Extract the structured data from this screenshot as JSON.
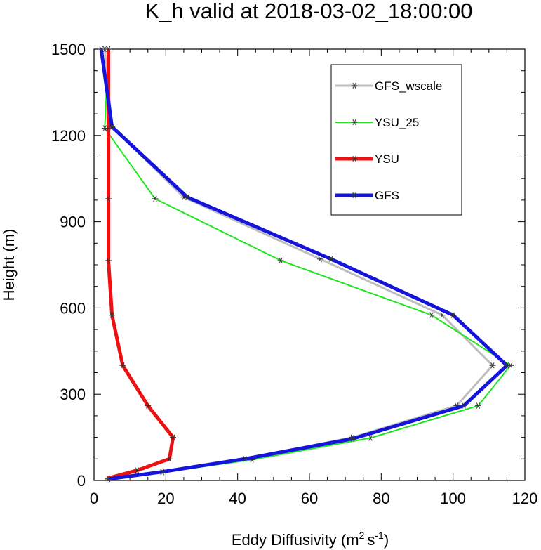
{
  "chart_data": {
    "type": "line",
    "title": "K_h valid at 2018-03-02_18:00:00",
    "xlabel": "Eddy Diffusivity",
    "xlabel_unit": {
      "base_m": "m",
      "exp_m": "2",
      "base_s": "s",
      "exp_s": "-1"
    },
    "ylabel": "Height (m)",
    "xlim": [
      0,
      120
    ],
    "ylim": [
      0,
      1500
    ],
    "xticks": [
      0,
      20,
      40,
      60,
      80,
      100,
      120
    ],
    "yticks": [
      0,
      300,
      600,
      900,
      1200,
      1500
    ],
    "grid": false,
    "legend_position": "top-right",
    "series": [
      {
        "name": "GFS_wscale",
        "color": "#bdbdbd",
        "width": 3,
        "marker": "asterisk",
        "x": [
          4,
          19,
          42,
          72,
          101,
          111,
          97,
          63,
          25,
          5,
          3
        ],
        "y": [
          5,
          30,
          75,
          150,
          260,
          400,
          575,
          770,
          985,
          1230,
          1500
        ]
      },
      {
        "name": "YSU_25",
        "color": "#1ee61e",
        "width": 2,
        "marker": "asterisk",
        "x": [
          4,
          19,
          44,
          77,
          107,
          116,
          94,
          52,
          17,
          3,
          4
        ],
        "y": [
          5,
          28,
          72,
          148,
          260,
          400,
          575,
          765,
          980,
          1225,
          1500
        ]
      },
      {
        "name": "YSU",
        "color": "#ee1111",
        "width": 5,
        "marker": "asterisk",
        "x": [
          4,
          12,
          21,
          22,
          15,
          8,
          5,
          4,
          4,
          4,
          4
        ],
        "y": [
          8,
          35,
          75,
          150,
          260,
          400,
          575,
          765,
          980,
          1225,
          1500
        ]
      },
      {
        "name": "GFS",
        "color": "#1414dc",
        "width": 5,
        "marker": "asterisk",
        "x": [
          4,
          19,
          42,
          72,
          103,
          115,
          100,
          66,
          26,
          5,
          2
        ],
        "y": [
          5,
          30,
          75,
          145,
          260,
          400,
          575,
          770,
          985,
          1230,
          1500
        ]
      }
    ]
  }
}
